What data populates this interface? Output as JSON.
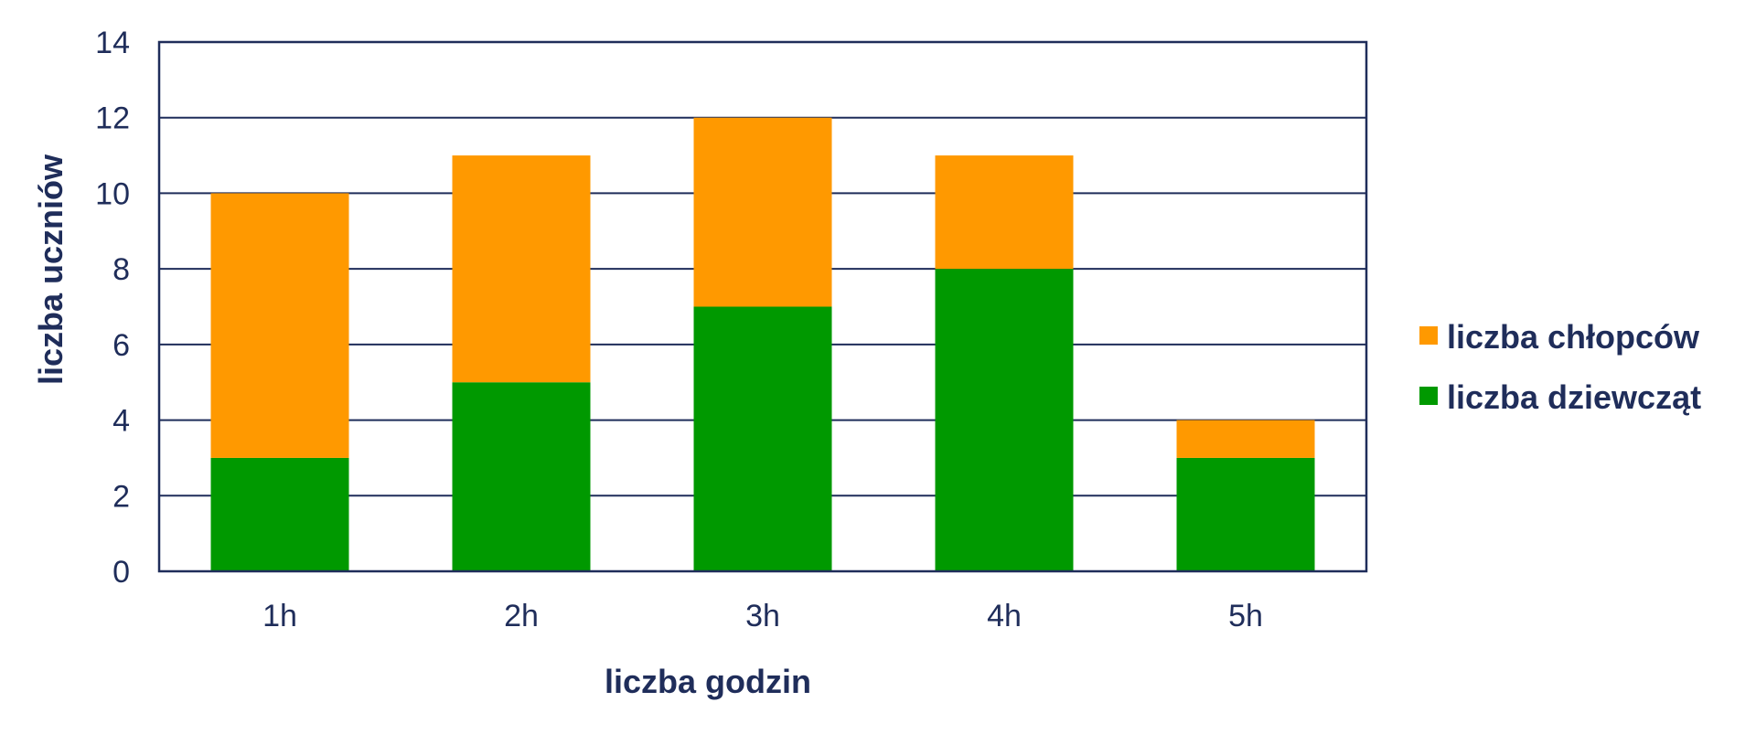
{
  "chart_data": {
    "type": "bar",
    "stacked": true,
    "categories": [
      "1h",
      "2h",
      "3h",
      "4h",
      "5h"
    ],
    "series": [
      {
        "name": "liczba dziewcząt",
        "values": [
          3,
          5,
          7,
          8,
          3
        ],
        "color": "#009900"
      },
      {
        "name": "liczba chłopców",
        "values": [
          7,
          6,
          5,
          3,
          1
        ],
        "color": "#ff9900"
      }
    ],
    "title": "",
    "xlabel": "liczba godzin",
    "ylabel": "liczba uczniów",
    "ylim": [
      0,
      14
    ],
    "yticks": [
      "0",
      "2",
      "4",
      "6",
      "8",
      "10",
      "12",
      "14"
    ],
    "grid": true,
    "legend": {
      "position": "right",
      "entries": [
        "liczba chłopców",
        "liczba dziewcząt"
      ]
    },
    "colors": {
      "axis": "#1f2d5a",
      "text": "#1f2d5a"
    }
  }
}
